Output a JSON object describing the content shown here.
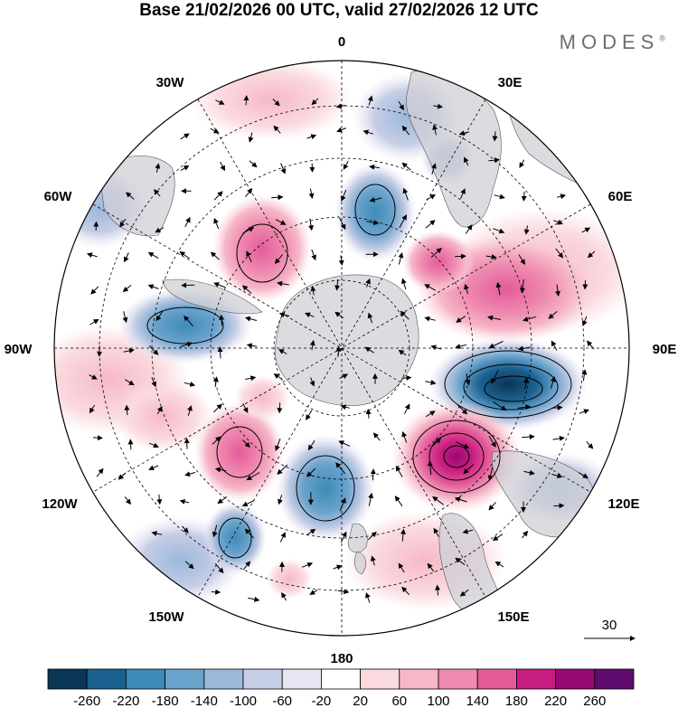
{
  "title": "Base 21/02/2026 00 UTC, valid 27/02/2026 12 UTC",
  "brand": "MODES",
  "brand_mark": "®",
  "longitude_labels": {
    "n": "0",
    "ne": "30E",
    "e1": "60E",
    "e": "90E",
    "se1": "120E",
    "se": "150E",
    "s": "180",
    "sw": "150W",
    "sw1": "120W",
    "w": "90W",
    "nw1": "60W",
    "nw": "30W"
  },
  "vector_scale_label": "30",
  "colorbar": {
    "ticks": [
      "-260",
      "-220",
      "-180",
      "-140",
      "-100",
      "-60",
      "-20",
      "20",
      "60",
      "100",
      "140",
      "180",
      "220",
      "260"
    ],
    "colors": [
      "#0b3554",
      "#1b6190",
      "#3e8ab8",
      "#6aa3cc",
      "#9bb8db",
      "#c6cde6",
      "#e6e6f2",
      "#ffffff",
      "#fadadf",
      "#f6b8c8",
      "#ef8ab0",
      "#e45b9a",
      "#c81d80",
      "#960a74",
      "#5e0c6e"
    ]
  }
}
